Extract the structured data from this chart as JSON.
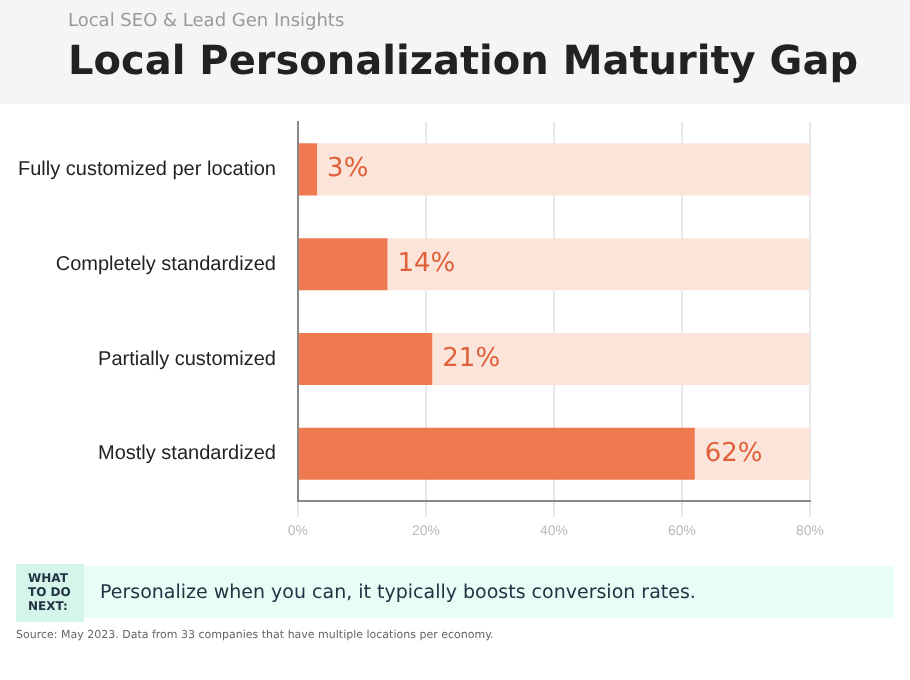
{
  "chart_data": {
    "type": "bar",
    "orientation": "horizontal",
    "subtitle": "Local SEO & Lead Gen Insights",
    "title": "Local Personalization Maturity Gap",
    "categories": [
      "Fully customized per location",
      "Completely standardized",
      "Partially customized",
      "Mostly standardized"
    ],
    "series": [
      {
        "color": "#f07a50",
        "values": [
          3,
          14,
          21,
          62
        ],
        "value_labels": [
          "3%",
          "14%",
          "21%",
          "62%"
        ]
      },
      {
        "color": "#fbe4da",
        "values": [
          77,
          66,
          59,
          18
        ]
      }
    ],
    "stacked": true,
    "xlim": [
      0,
      80
    ],
    "xticks": [
      {
        "value": 0,
        "label": "0%"
      },
      {
        "value": 20,
        "label": "20%"
      },
      {
        "value": 40,
        "label": "40%"
      },
      {
        "value": 60,
        "label": "60%"
      },
      {
        "value": 80,
        "label": "80%"
      }
    ],
    "grid": "x",
    "legend": false,
    "annotations": [
      "WHAT TO DO NEXT:",
      "Personalize when you can, it typically boosts conversion rates.",
      "Source: May 2023. Data from 33 companies that have multiple locations per economy."
    ]
  }
}
